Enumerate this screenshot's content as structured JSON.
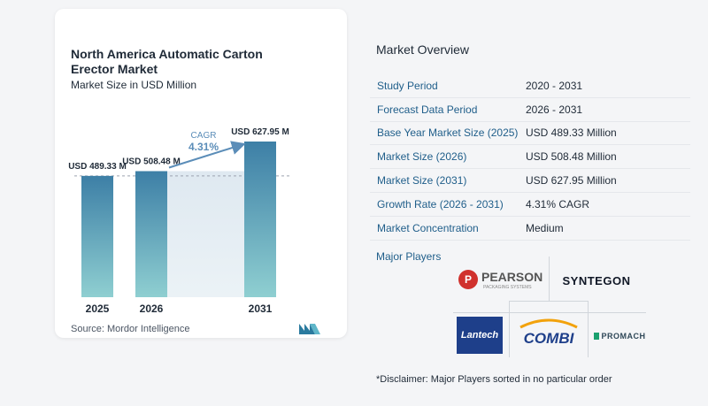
{
  "chart_card": {
    "title": "North America Automatic Carton Erector Market",
    "subtitle": "Market Size in USD Million",
    "source": "Source:  Mordor Intelligence"
  },
  "chart_data": {
    "type": "bar",
    "title": "North America Automatic Carton Erector Market",
    "subtitle": "Market Size in USD Million",
    "categories": [
      "2025",
      "2026",
      "2031"
    ],
    "values": [
      489.33,
      508.48,
      627.95
    ],
    "data_labels": [
      "USD 489.33 M",
      "USD 508.48 M",
      "USD 627.95 M"
    ],
    "cagr_label": "CAGR",
    "cagr_value": "4.31%",
    "ylim": [
      0,
      650
    ],
    "grid": false,
    "bar_colors": {
      "top": "#3d7fa6",
      "bottom": "#8fcfd1"
    }
  },
  "overview": {
    "title": "Market Overview",
    "rows": [
      {
        "label": "Study Period",
        "value": "2020 - 2031"
      },
      {
        "label": "Forecast Data Period",
        "value": "2026 - 2031"
      },
      {
        "label": "Base Year Market Size (2025)",
        "value": "USD 489.33 Million"
      },
      {
        "label": "Market Size (2026)",
        "value": "USD 508.48 Million"
      },
      {
        "label": "Market Size (2031)",
        "value": "USD 627.95 Million"
      },
      {
        "label": "Growth Rate (2026 - 2031)",
        "value": "4.31% CAGR"
      },
      {
        "label": "Market Concentration",
        "value": "Medium"
      }
    ]
  },
  "players": {
    "title": "Major Players",
    "pearson": {
      "name": "PEARSON",
      "tagline": "PACKAGING SYSTEMS"
    },
    "syntegon": "SYNTEGON",
    "lantech": "Lantech",
    "combi": "COMBI",
    "promach": "PROMACH"
  },
  "disclaimer": "*Disclaimer: Major Players sorted in no particular order",
  "colors": {
    "accent": "#1f5e8a",
    "bar_top": "#3d7fa6",
    "bar_bottom": "#8fcfd1",
    "cagr": "#5b8db8"
  }
}
